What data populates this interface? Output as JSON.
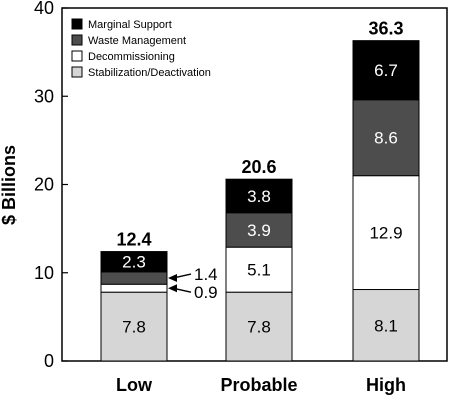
{
  "chart_data": {
    "type": "bar",
    "stacked": true,
    "title": "",
    "xlabel": "",
    "ylabel": "$ Billions",
    "ylim": [
      0,
      40
    ],
    "yticks": [
      0,
      10,
      20,
      30,
      40
    ],
    "categories": [
      "Low",
      "Probable",
      "High"
    ],
    "series": [
      {
        "name": "Stabilization/Deactivation",
        "values": [
          7.8,
          7.8,
          8.1
        ],
        "color": "#d6d6d6",
        "label_color": "#000000"
      },
      {
        "name": "Decommissioning",
        "values": [
          0.9,
          5.1,
          12.9
        ],
        "color": "#ffffff",
        "label_color": "#000000"
      },
      {
        "name": "Waste Management",
        "values": [
          1.4,
          3.9,
          8.6
        ],
        "color": "#4d4d4d",
        "label_color": "#ffffff"
      },
      {
        "name": "Marginal Support",
        "values": [
          2.3,
          3.8,
          6.7
        ],
        "color": "#000000",
        "label_color": "#ffffff"
      }
    ],
    "segment_labels": [
      [
        "7.8",
        "0.9",
        "1.4",
        "2.3"
      ],
      [
        "7.8",
        "5.1",
        "3.9",
        "3.8"
      ],
      [
        "8.1",
        "12.9",
        "8.6",
        "6.7"
      ]
    ],
    "totals": [
      "12.4",
      "20.6",
      "36.3"
    ],
    "legend_order": [
      "Marginal Support",
      "Waste Management",
      "Decommissioning",
      "Stabilization/Deactivation"
    ],
    "legend_position": "top-left",
    "grid": false
  }
}
